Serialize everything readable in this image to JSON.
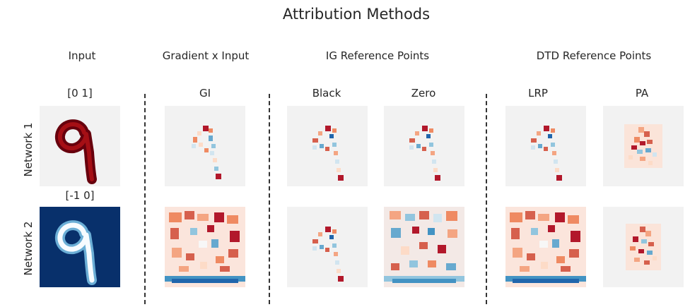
{
  "title": "Attribution Methods",
  "groups": {
    "input": "Input",
    "gradient": "Gradient x Input",
    "ig": "IG Reference Points",
    "dtd": "DTD Reference Points"
  },
  "columns": {
    "input_top": "[0 1]",
    "input_bottom": "[-1 0]",
    "gi": "GI",
    "black": "Black",
    "zero": "Zero",
    "lrp": "LRP",
    "pa": "PA"
  },
  "rows": {
    "network1": "Network 1",
    "network2": "Network 2"
  },
  "colors": {
    "positive": "#b2182b",
    "negative": "#2166ac",
    "neutral": "#f2f2f2",
    "input_dark_bg": "#08306b"
  }
}
